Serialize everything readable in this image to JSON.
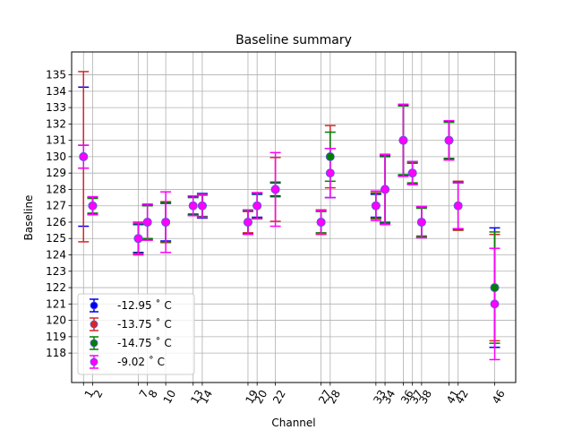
{
  "chart_data": {
    "type": "scatter",
    "title": "Baseline summary",
    "xlabel": "Channel",
    "ylabel": "Baseline",
    "xlim": [
      -0.3,
      48.3
    ],
    "ylim": [
      116.2,
      136.4
    ],
    "grid": true,
    "legend": "lower-left",
    "x_ticks": [
      1,
      2,
      7,
      8,
      10,
      13,
      14,
      19,
      20,
      22,
      27,
      28,
      33,
      34,
      36,
      37,
      38,
      41,
      42,
      46
    ],
    "y_ticks": [
      118,
      119,
      120,
      121,
      122,
      123,
      124,
      125,
      126,
      127,
      128,
      129,
      130,
      131,
      132,
      133,
      134,
      135
    ],
    "series": [
      {
        "name": "-12.95 $^\\circ$C",
        "legend_label": "-12.95 ˚ C",
        "color": "#0000ee",
        "points": [
          {
            "x": 1,
            "y": 130,
            "lo": 125.75,
            "hi": 134.25
          },
          {
            "x": 2,
            "y": 127,
            "lo": 126.45,
            "hi": 127.55
          },
          {
            "x": 7,
            "y": 125,
            "lo": 124.15,
            "hi": 125.85
          },
          {
            "x": 8,
            "y": 126,
            "lo": 124.95,
            "hi": 127.05
          },
          {
            "x": 10,
            "y": 126,
            "lo": 124.85,
            "hi": 127.15
          },
          {
            "x": 13,
            "y": 127,
            "lo": 126.45,
            "hi": 127.55
          },
          {
            "x": 14,
            "y": 127,
            "lo": 126.25,
            "hi": 127.75
          },
          {
            "x": 19,
            "y": 126,
            "lo": 125.3,
            "hi": 126.7
          },
          {
            "x": 20,
            "y": 127,
            "lo": 126.3,
            "hi": 127.7
          },
          {
            "x": 22,
            "y": 128,
            "lo": 127.6,
            "hi": 128.4
          },
          {
            "x": 27,
            "y": 126,
            "lo": 125.3,
            "hi": 126.7
          },
          {
            "x": 28,
            "y": 129,
            "lo": 127.5,
            "hi": 130.5
          },
          {
            "x": 33,
            "y": 127,
            "lo": 126.3,
            "hi": 127.7
          },
          {
            "x": 34,
            "y": 128,
            "lo": 125.95,
            "hi": 130.05
          },
          {
            "x": 36,
            "y": 131,
            "lo": 128.85,
            "hi": 133.15
          },
          {
            "x": 37,
            "y": 129,
            "lo": 128.3,
            "hi": 129.7
          },
          {
            "x": 38,
            "y": 126,
            "lo": 125.05,
            "hi": 126.95
          },
          {
            "x": 41,
            "y": 131,
            "lo": 129.85,
            "hi": 132.15
          },
          {
            "x": 42,
            "y": 127,
            "lo": 125.6,
            "hi": 128.4
          },
          {
            "x": 46,
            "y": 122,
            "lo": 118.35,
            "hi": 125.65
          }
        ]
      },
      {
        "name": "-13.75 $^\\circ$C",
        "legend_label": "-13.75 ˚ C",
        "color": "#d62728",
        "points": [
          {
            "x": 1,
            "y": 130,
            "lo": 124.8,
            "hi": 135.2
          },
          {
            "x": 2,
            "y": 127,
            "lo": 126.5,
            "hi": 127.5
          },
          {
            "x": 7,
            "y": 125,
            "lo": 124.0,
            "hi": 126.0
          },
          {
            "x": 8,
            "y": 126,
            "lo": 124.9,
            "hi": 127.1
          },
          {
            "x": 10,
            "y": 126,
            "lo": 124.75,
            "hi": 127.25
          },
          {
            "x": 13,
            "y": 127,
            "lo": 126.4,
            "hi": 127.6
          },
          {
            "x": 14,
            "y": 127,
            "lo": 126.3,
            "hi": 127.7
          },
          {
            "x": 19,
            "y": 126,
            "lo": 125.35,
            "hi": 126.65
          },
          {
            "x": 20,
            "y": 127,
            "lo": 126.2,
            "hi": 127.8
          },
          {
            "x": 22,
            "y": 128,
            "lo": 126.05,
            "hi": 129.95
          },
          {
            "x": 27,
            "y": 126,
            "lo": 125.25,
            "hi": 126.75
          },
          {
            "x": 28,
            "y": 130,
            "lo": 128.1,
            "hi": 131.9
          },
          {
            "x": 33,
            "y": 127,
            "lo": 126.2,
            "hi": 127.8
          },
          {
            "x": 34,
            "y": 128,
            "lo": 125.9,
            "hi": 130.1
          },
          {
            "x": 36,
            "y": 131,
            "lo": 128.8,
            "hi": 133.2
          },
          {
            "x": 37,
            "y": 129,
            "lo": 128.35,
            "hi": 129.65
          },
          {
            "x": 38,
            "y": 126,
            "lo": 125.1,
            "hi": 126.9
          },
          {
            "x": 41,
            "y": 131,
            "lo": 129.8,
            "hi": 132.2
          },
          {
            "x": 42,
            "y": 127,
            "lo": 125.5,
            "hi": 128.5
          },
          {
            "x": 46,
            "y": 122,
            "lo": 118.75,
            "hi": 125.25
          }
        ]
      },
      {
        "name": "-14.75 $^\\circ$C",
        "legend_label": "-14.75 ˚ C",
        "color": "#008000",
        "points": [
          {
            "x": 1,
            "y": 130,
            "lo": 129.3,
            "hi": 130.7
          },
          {
            "x": 2,
            "y": 127,
            "lo": 126.55,
            "hi": 127.45
          },
          {
            "x": 7,
            "y": 125,
            "lo": 124.1,
            "hi": 125.9
          },
          {
            "x": 8,
            "y": 126,
            "lo": 125.0,
            "hi": 127.0
          },
          {
            "x": 10,
            "y": 126,
            "lo": 124.8,
            "hi": 127.2
          },
          {
            "x": 13,
            "y": 127,
            "lo": 126.5,
            "hi": 127.5
          },
          {
            "x": 14,
            "y": 127,
            "lo": 126.35,
            "hi": 127.65
          },
          {
            "x": 19,
            "y": 126,
            "lo": 125.3,
            "hi": 126.7
          },
          {
            "x": 20,
            "y": 127,
            "lo": 126.25,
            "hi": 127.75
          },
          {
            "x": 22,
            "y": 128,
            "lo": 127.55,
            "hi": 128.45
          },
          {
            "x": 27,
            "y": 126,
            "lo": 125.35,
            "hi": 126.65
          },
          {
            "x": 28,
            "y": 130,
            "lo": 128.5,
            "hi": 131.5
          },
          {
            "x": 33,
            "y": 127,
            "lo": 126.25,
            "hi": 127.75
          },
          {
            "x": 34,
            "y": 128,
            "lo": 126.0,
            "hi": 130.0
          },
          {
            "x": 36,
            "y": 131,
            "lo": 128.9,
            "hi": 133.1
          },
          {
            "x": 37,
            "y": 129,
            "lo": 128.4,
            "hi": 129.6
          },
          {
            "x": 38,
            "y": 126,
            "lo": 125.15,
            "hi": 126.85
          },
          {
            "x": 41,
            "y": 131,
            "lo": 129.9,
            "hi": 132.1
          },
          {
            "x": 42,
            "y": 127,
            "lo": 125.55,
            "hi": 128.45
          },
          {
            "x": 46,
            "y": 122,
            "lo": 118.6,
            "hi": 125.4
          }
        ]
      },
      {
        "name": "-9.02 $^\\circ$C",
        "legend_label": "-9.02 ˚ C",
        "color": "#ff00ff",
        "points": [
          {
            "x": 1,
            "y": 130,
            "lo": 129.3,
            "hi": 130.7
          },
          {
            "x": 2,
            "y": 127,
            "lo": 126.45,
            "hi": 127.55
          },
          {
            "x": 7,
            "y": 125,
            "lo": 124.05,
            "hi": 125.95
          },
          {
            "x": 8,
            "y": 126,
            "lo": 124.9,
            "hi": 127.1
          },
          {
            "x": 10,
            "y": 126,
            "lo": 124.15,
            "hi": 127.85
          },
          {
            "x": 13,
            "y": 127,
            "lo": 126.4,
            "hi": 127.6
          },
          {
            "x": 14,
            "y": 127,
            "lo": 126.3,
            "hi": 127.7
          },
          {
            "x": 19,
            "y": 126,
            "lo": 125.25,
            "hi": 126.75
          },
          {
            "x": 20,
            "y": 127,
            "lo": 126.2,
            "hi": 127.8
          },
          {
            "x": 22,
            "y": 128,
            "lo": 125.75,
            "hi": 130.25
          },
          {
            "x": 27,
            "y": 126,
            "lo": 125.3,
            "hi": 126.7
          },
          {
            "x": 28,
            "y": 129,
            "lo": 127.5,
            "hi": 130.5
          },
          {
            "x": 33,
            "y": 127,
            "lo": 126.1,
            "hi": 127.9
          },
          {
            "x": 34,
            "y": 128,
            "lo": 125.85,
            "hi": 130.15
          },
          {
            "x": 36,
            "y": 131,
            "lo": 128.8,
            "hi": 133.2
          },
          {
            "x": 37,
            "y": 129,
            "lo": 128.3,
            "hi": 129.7
          },
          {
            "x": 38,
            "y": 126,
            "lo": 125.05,
            "hi": 126.95
          },
          {
            "x": 41,
            "y": 131,
            "lo": 129.8,
            "hi": 132.2
          },
          {
            "x": 42,
            "y": 127,
            "lo": 125.6,
            "hi": 128.4
          },
          {
            "x": 46,
            "y": 121,
            "lo": 117.6,
            "hi": 124.4
          }
        ]
      }
    ]
  }
}
